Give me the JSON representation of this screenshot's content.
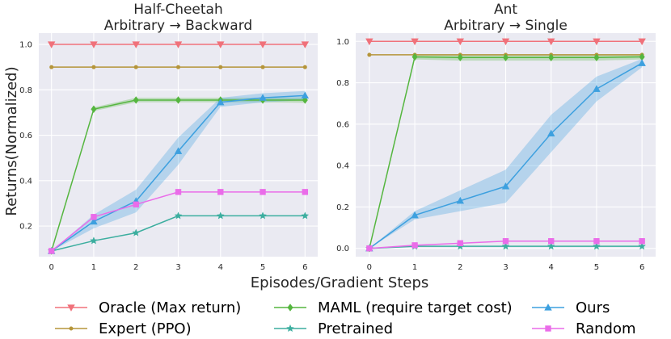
{
  "chart_data": [
    {
      "type": "line",
      "title": [
        "Half-Cheetah",
        "Arbitrary → Backward"
      ],
      "xlabel": "Episodes/Gradient Steps",
      "ylabel": "Returns(Normalized)",
      "x": [
        0,
        1,
        2,
        3,
        4,
        5,
        6
      ],
      "xlim": [
        -0.3,
        6.3
      ],
      "ylim": [
        0.065,
        1.05
      ],
      "yticks": [
        0.2,
        0.4,
        0.6,
        0.8,
        1.0
      ],
      "ytick_labels": [
        "0.2",
        "0.4",
        "0.6",
        "0.8",
        "1.0"
      ],
      "xtick_labels": [
        "0",
        "1",
        "2",
        "3",
        "4",
        "5",
        "6"
      ],
      "series": [
        {
          "name": "Oracle (Max return)",
          "values": [
            1.0,
            1.0,
            1.0,
            1.0,
            1.0,
            1.0,
            1.0
          ],
          "color": "#f0717a",
          "marker": "tri-down"
        },
        {
          "name": "Expert (PPO)",
          "values": [
            0.9,
            0.9,
            0.9,
            0.9,
            0.9,
            0.9,
            0.9
          ],
          "color": "#b5953a",
          "marker": "dot"
        },
        {
          "name": "MAML (require target cost)",
          "values": [
            0.09,
            0.715,
            0.755,
            0.755,
            0.755,
            0.755,
            0.755
          ],
          "color": "#55b63f",
          "marker": "diamond",
          "band": [
            0.0,
            0.008,
            0.01,
            0.01,
            0.01,
            0.01,
            0.012
          ]
        },
        {
          "name": "Pretrained",
          "values": [
            0.09,
            0.135,
            0.17,
            0.245,
            0.245,
            0.245,
            0.245
          ],
          "color": "#3cae9f",
          "marker": "star"
        },
        {
          "name": "Ours",
          "values": [
            0.09,
            0.22,
            0.31,
            0.53,
            0.745,
            0.765,
            0.775
          ],
          "color": "#3da0df",
          "marker": "tri-up",
          "band": [
            0.0,
            0.03,
            0.05,
            0.06,
            0.02,
            0.02,
            0.02
          ]
        },
        {
          "name": "Random",
          "values": [
            0.09,
            0.24,
            0.295,
            0.35,
            0.35,
            0.35,
            0.35
          ],
          "color": "#ea6ce9",
          "marker": "square"
        }
      ]
    },
    {
      "type": "line",
      "title": [
        "Ant",
        "Arbitrary → Single"
      ],
      "xlabel": "Episodes/Gradient Steps",
      "ylabel": "",
      "x": [
        0,
        1,
        2,
        3,
        4,
        5,
        6
      ],
      "xlim": [
        -0.3,
        6.3
      ],
      "ylim": [
        -0.04,
        1.04
      ],
      "yticks": [
        0.0,
        0.2,
        0.4,
        0.6,
        0.8,
        1.0
      ],
      "ytick_labels": [
        "0.0",
        "0.2",
        "0.4",
        "0.6",
        "0.8",
        "1.0"
      ],
      "xtick_labels": [
        "0",
        "1",
        "2",
        "3",
        "4",
        "5",
        "6"
      ],
      "series": [
        {
          "name": "Oracle (Max return)",
          "values": [
            1.0,
            1.0,
            1.0,
            1.0,
            1.0,
            1.0,
            1.0
          ],
          "color": "#f0717a",
          "marker": "tri-down"
        },
        {
          "name": "Expert (PPO)",
          "values": [
            0.935,
            0.935,
            0.935,
            0.935,
            0.935,
            0.935,
            0.935
          ],
          "color": "#b5953a",
          "marker": "dot"
        },
        {
          "name": "MAML (require target cost)",
          "values": [
            0.0,
            0.925,
            0.922,
            0.922,
            0.922,
            0.922,
            0.925
          ],
          "color": "#55b63f",
          "marker": "diamond",
          "band": [
            0.0,
            0.012,
            0.015,
            0.015,
            0.015,
            0.015,
            0.012
          ]
        },
        {
          "name": "Pretrained",
          "values": [
            0.0,
            0.01,
            0.01,
            0.01,
            0.01,
            0.01,
            0.01
          ],
          "color": "#3cae9f",
          "marker": "star"
        },
        {
          "name": "Ours",
          "values": [
            0.0,
            0.16,
            0.23,
            0.3,
            0.555,
            0.77,
            0.895
          ],
          "color": "#3da0df",
          "marker": "tri-up",
          "band": [
            0.0,
            0.02,
            0.05,
            0.08,
            0.09,
            0.06,
            0.02
          ]
        },
        {
          "name": "Random",
          "values": [
            0.0,
            0.015,
            0.025,
            0.035,
            0.035,
            0.035,
            0.035
          ],
          "color": "#ea6ce9",
          "marker": "square"
        }
      ]
    }
  ],
  "legend": [
    {
      "label": "Oracle (Max return)",
      "color": "#f0717a",
      "marker": "tri-down"
    },
    {
      "label": "MAML (require target cost)",
      "color": "#55b63f",
      "marker": "diamond"
    },
    {
      "label": "Ours",
      "color": "#3da0df",
      "marker": "tri-up"
    },
    {
      "label": "Expert (PPO)",
      "color": "#b5953a",
      "marker": "dot"
    },
    {
      "label": "Pretrained",
      "color": "#3cae9f",
      "marker": "star"
    },
    {
      "label": "Random",
      "color": "#ea6ce9",
      "marker": "square"
    }
  ]
}
